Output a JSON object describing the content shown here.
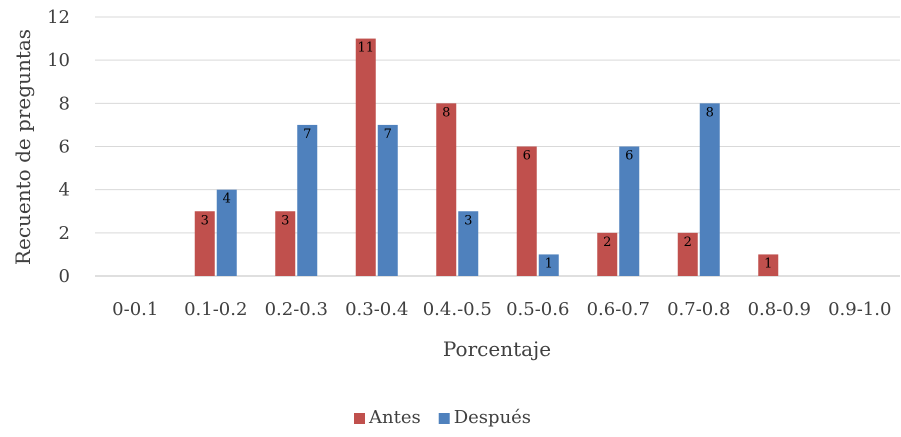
{
  "chart_data": {
    "type": "bar",
    "categories": [
      "0-0.1",
      "0.1-0.2",
      "0.2-0.3",
      "0.3-0.4",
      "0.4.-0.5",
      "0.5-0.6",
      "0.6-0.7",
      "0.7-0.8",
      "0.8-0.9",
      "0.9-1.0"
    ],
    "series": [
      {
        "name": "Antes",
        "color": "#c0504d",
        "values": [
          0,
          3,
          3,
          11,
          8,
          6,
          2,
          2,
          1,
          0
        ]
      },
      {
        "name": "Después",
        "color": "#4f81bd",
        "values": [
          0,
          4,
          7,
          7,
          3,
          1,
          6,
          8,
          0,
          0
        ]
      }
    ],
    "xlabel": "Porcentaje",
    "ylabel": "Recuento de preguntas",
    "ylim": [
      0,
      12
    ],
    "yticks": [
      0,
      2,
      4,
      6,
      8,
      10,
      12
    ],
    "grid": true,
    "legend": "bottom",
    "data_labels": true
  }
}
